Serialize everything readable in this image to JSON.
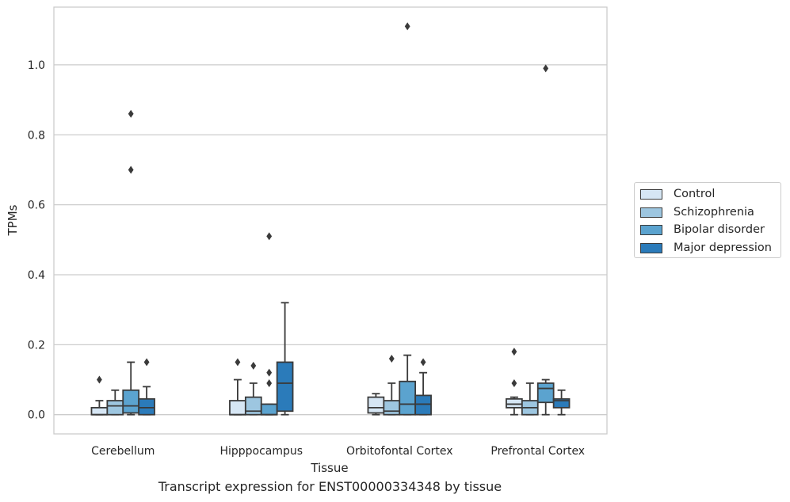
{
  "caption": "Transcript expression for ENST00000334348 by tissue",
  "chart_data": {
    "type": "box",
    "xlabel": "Tissue",
    "ylabel": "TPMs",
    "ylim": [
      -0.055,
      1.165
    ],
    "yticks": [
      "0.0",
      "0.2",
      "0.4",
      "0.6",
      "0.8",
      "1.0"
    ],
    "ytick_values": [
      0.0,
      0.2,
      0.4,
      0.6,
      0.8,
      1.0
    ],
    "grid": true,
    "legend_position": "right",
    "categories": [
      "Cerebellum",
      "Hipppocampus",
      "Orbitofontal Cortex",
      "Prefrontal Cortex"
    ],
    "series": [
      {
        "name": "Control",
        "color": "#d6e6f4",
        "boxes": [
          {
            "whislo": 0.0,
            "q1": 0.0,
            "med": 0.0,
            "q3": 0.02,
            "whishi": 0.04,
            "fliers": [
              0.1
            ]
          },
          {
            "whislo": 0.0,
            "q1": 0.0,
            "med": 0.0,
            "q3": 0.04,
            "whishi": 0.1,
            "fliers": [
              0.15
            ]
          },
          {
            "whislo": 0.0,
            "q1": 0.005,
            "med": 0.02,
            "q3": 0.05,
            "whishi": 0.06,
            "fliers": []
          },
          {
            "whislo": 0.0,
            "q1": 0.02,
            "med": 0.03,
            "q3": 0.045,
            "whishi": 0.05,
            "fliers": [
              0.09,
              0.18
            ]
          }
        ]
      },
      {
        "name": "Schizophrenia",
        "color": "#9dc6e0",
        "boxes": [
          {
            "whislo": 0.0,
            "q1": 0.0,
            "med": 0.025,
            "q3": 0.04,
            "whishi": 0.07,
            "fliers": []
          },
          {
            "whislo": 0.0,
            "q1": 0.0,
            "med": 0.01,
            "q3": 0.05,
            "whishi": 0.09,
            "fliers": [
              0.14
            ]
          },
          {
            "whislo": 0.0,
            "q1": 0.0,
            "med": 0.01,
            "q3": 0.04,
            "whishi": 0.09,
            "fliers": [
              0.16
            ]
          },
          {
            "whislo": 0.0,
            "q1": 0.0,
            "med": 0.02,
            "q3": 0.04,
            "whishi": 0.09,
            "fliers": []
          }
        ]
      },
      {
        "name": "Bipolar disorder",
        "color": "#5ba3cf",
        "boxes": [
          {
            "whislo": 0.0,
            "q1": 0.005,
            "med": 0.025,
            "q3": 0.07,
            "whishi": 0.15,
            "fliers": [
              0.7,
              0.86
            ]
          },
          {
            "whislo": 0.0,
            "q1": 0.0,
            "med": 0.0,
            "q3": 0.03,
            "whishi": 0.03,
            "fliers": [
              0.09,
              0.12,
              0.51
            ]
          },
          {
            "whislo": 0.0,
            "q1": 0.0,
            "med": 0.03,
            "q3": 0.095,
            "whishi": 0.17,
            "fliers": [
              1.11
            ]
          },
          {
            "whislo": 0.0,
            "q1": 0.035,
            "med": 0.075,
            "q3": 0.09,
            "whishi": 0.1,
            "fliers": [
              0.99
            ]
          }
        ]
      },
      {
        "name": "Major depression",
        "color": "#2b7bba",
        "boxes": [
          {
            "whislo": 0.0,
            "q1": 0.0,
            "med": 0.02,
            "q3": 0.045,
            "whishi": 0.08,
            "fliers": [
              0.15
            ]
          },
          {
            "whislo": 0.0,
            "q1": 0.01,
            "med": 0.09,
            "q3": 0.15,
            "whishi": 0.32,
            "fliers": []
          },
          {
            "whislo": 0.0,
            "q1": 0.0,
            "med": 0.03,
            "q3": 0.055,
            "whishi": 0.12,
            "fliers": [
              0.15
            ]
          },
          {
            "whislo": 0.0,
            "q1": 0.02,
            "med": 0.04,
            "q3": 0.045,
            "whishi": 0.07,
            "fliers": []
          }
        ]
      }
    ]
  }
}
